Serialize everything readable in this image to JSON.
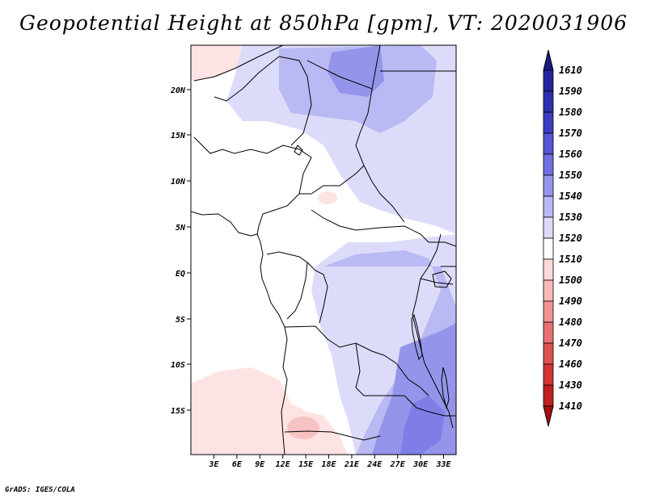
{
  "title": "Geopotential Height at 850hPa [gpm], VT: 2020031906",
  "credit": "GrADS: IGES/COLA",
  "map": {
    "lat_labels": [
      "20N",
      "15N",
      "10N",
      "5N",
      "EQ",
      "5S",
      "10S",
      "15S"
    ],
    "lon_labels": [
      "3E",
      "6E",
      "9E",
      "12E",
      "15E",
      "18E",
      "21E",
      "24E",
      "27E",
      "30E",
      "33E"
    ]
  },
  "colorbar": {
    "labels": [
      "1610",
      "1590",
      "1580",
      "1570",
      "1560",
      "1550",
      "1540",
      "1530",
      "1520",
      "1510",
      "1500",
      "1490",
      "1480",
      "1470",
      "1460",
      "1430",
      "1410"
    ],
    "colors": {
      "top_tip": "#1a1a80",
      "c1590": "#2424a0",
      "c1580": "#2e2eb0",
      "c1570": "#3c3cc0",
      "c1560": "#5555d6",
      "c1550": "#7070e0",
      "c1540": "#9494ea",
      "c1530": "#b9b9f3",
      "c1520": "#dcdcfa",
      "c1510": "#ffffff",
      "c1500": "#fddada",
      "c1490": "#f7b8b8",
      "c1480": "#f09393",
      "c1470": "#e87070",
      "c1460": "#df5050",
      "c1430": "#d43535",
      "c1410": "#c02020",
      "bottom_tip": "#a81010"
    }
  }
}
